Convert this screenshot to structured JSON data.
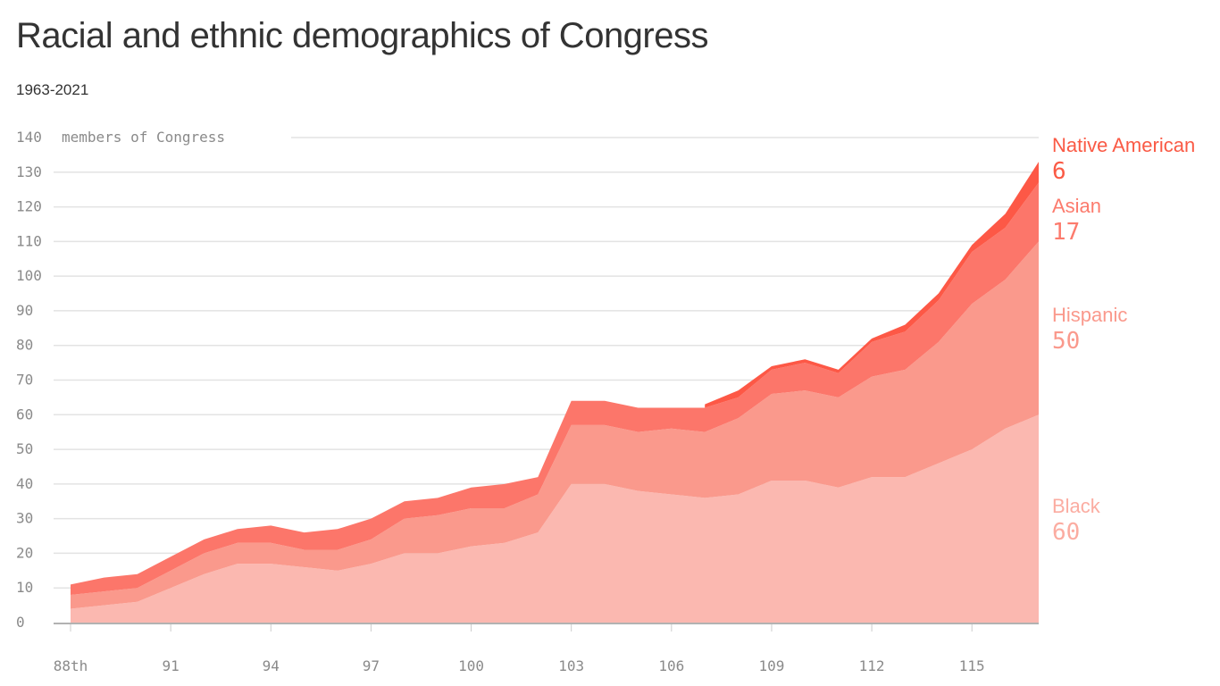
{
  "title": "Racial and ethnic demographics of Congress",
  "subtitle": "1963-2021",
  "chart_data": {
    "type": "area",
    "stacked": true,
    "ylabel": "members of Congress",
    "ylim": [
      0,
      140
    ],
    "yticks": [
      0,
      10,
      20,
      30,
      40,
      50,
      60,
      70,
      80,
      90,
      100,
      110,
      120,
      130,
      140
    ],
    "x": [
      88,
      89,
      90,
      91,
      92,
      93,
      94,
      95,
      96,
      97,
      98,
      99,
      100,
      101,
      102,
      103,
      104,
      105,
      106,
      107,
      108,
      109,
      110,
      111,
      112,
      113,
      114,
      115,
      116,
      117
    ],
    "xtick_labels": [
      {
        "x": 88,
        "label": "88th"
      },
      {
        "x": 91,
        "label": "91"
      },
      {
        "x": 94,
        "label": "94"
      },
      {
        "x": 97,
        "label": "97"
      },
      {
        "x": 100,
        "label": "100"
      },
      {
        "x": 103,
        "label": "103"
      },
      {
        "x": 106,
        "label": "106"
      },
      {
        "x": 109,
        "label": "109"
      },
      {
        "x": 112,
        "label": "112"
      },
      {
        "x": 115,
        "label": "115"
      }
    ],
    "grid": true,
    "series": [
      {
        "name": "Black",
        "final_label": "60",
        "color": "#fbb8b0",
        "values": [
          4,
          5,
          6,
          10,
          14,
          17,
          17,
          16,
          15,
          17,
          20,
          20,
          22,
          23,
          26,
          40,
          40,
          38,
          37,
          36,
          37,
          41,
          41,
          39,
          42,
          42,
          46,
          50,
          56,
          60
        ]
      },
      {
        "name": "Hispanic",
        "final_label": "50",
        "color": "#fa998c",
        "values": [
          4,
          4,
          4,
          5,
          6,
          6,
          6,
          5,
          6,
          7,
          10,
          11,
          11,
          10,
          11,
          17,
          17,
          17,
          19,
          19,
          22,
          25,
          26,
          26,
          29,
          31,
          35,
          42,
          43,
          50
        ]
      },
      {
        "name": "Asian",
        "final_label": "17",
        "color": "#fc766a",
        "values": [
          3,
          4,
          4,
          4,
          4,
          4,
          5,
          5,
          6,
          6,
          5,
          5,
          6,
          7,
          5,
          7,
          7,
          7,
          6,
          7,
          6,
          7,
          8,
          7,
          10,
          11,
          12,
          15,
          15,
          17
        ]
      },
      {
        "name": "Native American",
        "final_label": "6",
        "color": "#fd5846",
        "values": [
          0,
          0,
          0,
          0,
          0,
          0,
          0,
          0,
          0,
          0,
          0,
          0,
          0,
          0,
          0,
          0,
          0,
          0,
          0,
          1,
          2,
          1,
          1,
          1,
          1,
          2,
          2,
          2,
          4,
          6
        ]
      }
    ],
    "legend": "right, end-of-series labels"
  }
}
